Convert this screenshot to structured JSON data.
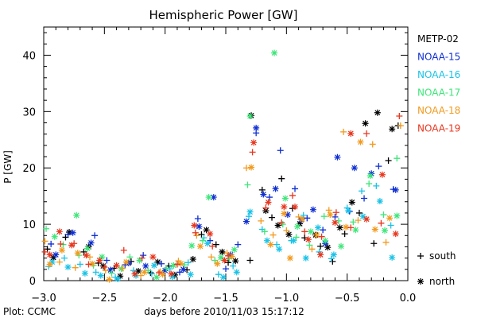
{
  "chart_data": {
    "type": "scatter",
    "title": "Hemispheric Power [GW]",
    "xlabel": "days before 2010/11/03 15:17:12",
    "ylabel": "P [GW]",
    "xlim": [
      -3.0,
      0.0
    ],
    "ylim": [
      0,
      45
    ],
    "xticks": [
      -3.0,
      -2.5,
      -2.0,
      -1.5,
      -1.0,
      -0.5,
      0.0
    ],
    "xtick_labels": [
      "−3.0",
      "−2.5",
      "−2.0",
      "−1.5",
      "−1.0",
      "−0.5",
      "0.0"
    ],
    "yticks": [
      0,
      10,
      20,
      30,
      40
    ],
    "yminor_step": 2,
    "xminor_step": 0.1,
    "grid": false,
    "legend_position": "right",
    "series": [
      {
        "name": "METP-02",
        "color": "#000000",
        "south": [
          [
            -2.97,
            5.6
          ],
          [
            -2.82,
            7.7
          ],
          [
            -2.67,
            5.1
          ],
          [
            -2.55,
            3.1
          ],
          [
            -2.42,
            2.2
          ],
          [
            -2.28,
            3.4
          ],
          [
            -2.12,
            1.4
          ],
          [
            -1.97,
            2.6
          ],
          [
            -1.82,
            1.9
          ],
          [
            -1.7,
            8.2
          ],
          [
            -1.58,
            6.4
          ],
          [
            -1.48,
            3.2
          ],
          [
            -1.3,
            3.6
          ],
          [
            -1.2,
            16.1
          ],
          [
            -1.12,
            11.2
          ],
          [
            -1.04,
            18.1
          ],
          [
            -0.95,
            12.8
          ],
          [
            -0.85,
            7.6
          ],
          [
            -0.72,
            6.1
          ],
          [
            -0.62,
            3.4
          ],
          [
            -0.52,
            8.3
          ],
          [
            -0.4,
            12.0
          ],
          [
            -0.28,
            6.6
          ],
          [
            -0.16,
            21.3
          ],
          [
            -0.08,
            27.5
          ]
        ],
        "north": [
          [
            -2.92,
            4.1
          ],
          [
            -2.79,
            8.6
          ],
          [
            -2.63,
            6.0
          ],
          [
            -2.51,
            2.6
          ],
          [
            -2.37,
            0.8
          ],
          [
            -2.22,
            1.7
          ],
          [
            -2.06,
            3.3
          ],
          [
            -1.92,
            1.0
          ],
          [
            -1.77,
            3.8
          ],
          [
            -1.66,
            9.0
          ],
          [
            -1.53,
            5.1
          ],
          [
            -1.42,
            3.5
          ],
          [
            -1.29,
            29.3
          ],
          [
            -1.17,
            12.4
          ],
          [
            -1.07,
            9.8
          ],
          [
            -0.98,
            8.2
          ],
          [
            -0.89,
            10.1
          ],
          [
            -0.76,
            8.1
          ],
          [
            -0.66,
            5.9
          ],
          [
            -0.56,
            9.4
          ],
          [
            -0.46,
            13.9
          ],
          [
            -0.35,
            27.9
          ],
          [
            -0.25,
            29.8
          ],
          [
            -0.13,
            26.9
          ]
        ]
      },
      {
        "name": "NOAA-15",
        "color": "#0f2fd2",
        "south": [
          [
            -2.94,
            6.5
          ],
          [
            -2.8,
            8.2
          ],
          [
            -2.58,
            8.0
          ],
          [
            -2.48,
            3.6
          ],
          [
            -2.33,
            2.8
          ],
          [
            -2.18,
            4.5
          ],
          [
            -2.03,
            3.0
          ],
          [
            -1.88,
            1.5
          ],
          [
            -1.73,
            11.0
          ],
          [
            -1.63,
            7.1
          ],
          [
            -1.5,
            2.1
          ],
          [
            -1.4,
            6.4
          ],
          [
            -1.25,
            26.2
          ],
          [
            -1.14,
            14.8
          ],
          [
            -1.05,
            23.1
          ],
          [
            -0.93,
            16.3
          ],
          [
            -0.83,
            11.1
          ],
          [
            -0.7,
            9.0
          ],
          [
            -0.6,
            11.3
          ],
          [
            -0.48,
            12.3
          ],
          [
            -0.36,
            14.6
          ],
          [
            -0.24,
            20.3
          ],
          [
            -0.12,
            16.2
          ]
        ],
        "north": [
          [
            -2.9,
            4.6
          ],
          [
            -2.76,
            8.5
          ],
          [
            -2.61,
            6.7
          ],
          [
            -2.45,
            1.9
          ],
          [
            -2.3,
            3.1
          ],
          [
            -2.16,
            2.6
          ],
          [
            -2.0,
            1.8
          ],
          [
            -1.85,
            2.0
          ],
          [
            -1.72,
            9.6
          ],
          [
            -1.6,
            14.8
          ],
          [
            -1.46,
            4.6
          ],
          [
            -1.33,
            10.5
          ],
          [
            -1.25,
            27.1
          ],
          [
            -1.19,
            15.3
          ],
          [
            -1.09,
            16.3
          ],
          [
            -0.99,
            11.7
          ],
          [
            -0.88,
            10.8
          ],
          [
            -0.78,
            12.6
          ],
          [
            -0.68,
            6.6
          ],
          [
            -0.58,
            21.9
          ],
          [
            -0.44,
            20.0
          ],
          [
            -0.3,
            19.0
          ],
          [
            -0.1,
            16.1
          ]
        ]
      },
      {
        "name": "NOAA-16",
        "color": "#19c2e6",
        "south": [
          [
            -2.96,
            2.5
          ],
          [
            -2.83,
            4.0
          ],
          [
            -2.7,
            2.9
          ],
          [
            -2.57,
            1.5
          ],
          [
            -2.41,
            0.6
          ],
          [
            -2.26,
            1.8
          ],
          [
            -2.11,
            1.2
          ],
          [
            -1.96,
            2.1
          ],
          [
            -1.81,
            3.2
          ],
          [
            -1.68,
            7.6
          ],
          [
            -1.56,
            1.1
          ],
          [
            -1.44,
            2.6
          ],
          [
            -1.31,
            11.4
          ],
          [
            -1.2,
            9.1
          ],
          [
            -1.08,
            6.4
          ],
          [
            -0.96,
            7.1
          ],
          [
            -0.86,
            11.6
          ],
          [
            -0.73,
            5.1
          ],
          [
            -0.63,
            3.9
          ],
          [
            -0.5,
            12.9
          ],
          [
            -0.38,
            15.9
          ],
          [
            -0.26,
            16.8
          ],
          [
            -0.14,
            9.8
          ]
        ],
        "north": [
          [
            -2.93,
            3.3
          ],
          [
            -2.8,
            2.4
          ],
          [
            -2.66,
            1.3
          ],
          [
            -2.53,
            0.9
          ],
          [
            -2.39,
            0.3
          ],
          [
            -2.24,
            0.9
          ],
          [
            -2.09,
            2.7
          ],
          [
            -1.94,
            0.7
          ],
          [
            -1.79,
            1.1
          ],
          [
            -1.65,
            6.6
          ],
          [
            -1.52,
            0.6
          ],
          [
            -1.41,
            1.5
          ],
          [
            -1.3,
            12.2
          ],
          [
            -1.16,
            7.1
          ],
          [
            -1.06,
            5.6
          ],
          [
            -0.94,
            7.1
          ],
          [
            -0.84,
            4.0
          ],
          [
            -0.74,
            9.4
          ],
          [
            -0.61,
            4.6
          ],
          [
            -0.49,
            12.4
          ],
          [
            -0.37,
            11.4
          ],
          [
            -0.23,
            14.1
          ],
          [
            -0.13,
            4.1
          ]
        ]
      },
      {
        "name": "NOAA-17",
        "color": "#3fe67a",
        "south": [
          [
            -2.98,
            9.2
          ],
          [
            -2.84,
            6.4
          ],
          [
            -2.71,
            4.5
          ],
          [
            -2.59,
            2.7
          ],
          [
            -2.44,
            1.3
          ],
          [
            -2.29,
            4.2
          ],
          [
            -2.14,
            1.8
          ],
          [
            -1.99,
            2.2
          ],
          [
            -1.84,
            2.8
          ],
          [
            -1.69,
            7.1
          ],
          [
            -1.59,
            3.6
          ],
          [
            -1.47,
            3.9
          ],
          [
            -1.32,
            17.0
          ],
          [
            -1.18,
            8.7
          ],
          [
            -1.03,
            10.0
          ],
          [
            -0.92,
            7.7
          ],
          [
            -0.81,
            6.3
          ],
          [
            -0.69,
            11.4
          ],
          [
            -0.57,
            10.6
          ],
          [
            -0.45,
            10.4
          ],
          [
            -0.32,
            17.2
          ],
          [
            -0.2,
            11.7
          ],
          [
            -0.09,
            21.7
          ]
        ],
        "north": [
          [
            -2.91,
            7.8
          ],
          [
            -2.73,
            11.6
          ],
          [
            -2.64,
            5.7
          ],
          [
            -2.52,
            4.2
          ],
          [
            -2.36,
            2.1
          ],
          [
            -2.21,
            3.6
          ],
          [
            -2.07,
            0.6
          ],
          [
            -1.93,
            2.7
          ],
          [
            -1.78,
            6.2
          ],
          [
            -1.64,
            14.8
          ],
          [
            -1.54,
            4.1
          ],
          [
            -1.43,
            5.5
          ],
          [
            -1.3,
            29.2
          ],
          [
            -1.1,
            40.4
          ],
          [
            -1.01,
            14.6
          ],
          [
            -0.91,
            9.6
          ],
          [
            -0.8,
            8.7
          ],
          [
            -0.68,
            7.1
          ],
          [
            -0.55,
            6.1
          ],
          [
            -0.43,
            9.0
          ],
          [
            -0.31,
            18.6
          ],
          [
            -0.19,
            8.9
          ],
          [
            -0.09,
            11.5
          ]
        ]
      },
      {
        "name": "NOAA-18",
        "color": "#f29a1e",
        "south": [
          [
            -2.99,
            7.0
          ],
          [
            -2.87,
            3.3
          ],
          [
            -2.74,
            2.3
          ],
          [
            -2.62,
            4.2
          ],
          [
            -2.49,
            1.8
          ],
          [
            -2.35,
            2.2
          ],
          [
            -2.2,
            0.9
          ],
          [
            -2.04,
            1.6
          ],
          [
            -1.89,
            3.5
          ],
          [
            -1.74,
            8.0
          ],
          [
            -1.62,
            4.2
          ],
          [
            -1.49,
            4.9
          ],
          [
            -1.33,
            20.0
          ],
          [
            -1.21,
            10.6
          ],
          [
            -1.11,
            8.1
          ],
          [
            -1.0,
            8.9
          ],
          [
            -0.9,
            11.3
          ],
          [
            -0.79,
            5.6
          ],
          [
            -0.65,
            12.5
          ],
          [
            -0.53,
            26.4
          ],
          [
            -0.41,
            10.7
          ],
          [
            -0.29,
            24.2
          ],
          [
            -0.18,
            6.8
          ],
          [
            -0.06,
            27.5
          ]
        ],
        "north": [
          [
            -2.95,
            2.9
          ],
          [
            -2.85,
            5.4
          ],
          [
            -2.72,
            4.9
          ],
          [
            -2.6,
            3.0
          ],
          [
            -2.46,
            0.2
          ],
          [
            -2.32,
            3.3
          ],
          [
            -2.17,
            1.5
          ],
          [
            -2.02,
            1.1
          ],
          [
            -1.87,
            3.0
          ],
          [
            -1.71,
            6.1
          ],
          [
            -1.57,
            3.0
          ],
          [
            -1.45,
            4.3
          ],
          [
            -1.29,
            20.1
          ],
          [
            -1.13,
            6.4
          ],
          [
            -1.02,
            11.9
          ],
          [
            -0.97,
            4.0
          ],
          [
            -0.87,
            10.9
          ],
          [
            -0.75,
            8.1
          ],
          [
            -0.64,
            11.7
          ],
          [
            -0.51,
            9.5
          ],
          [
            -0.39,
            24.6
          ],
          [
            -0.27,
            9.1
          ],
          [
            -0.15,
            11.1
          ]
        ]
      },
      {
        "name": "NOAA-19",
        "color": "#e8361e",
        "south": [
          [
            -2.99,
            5.1
          ],
          [
            -2.86,
            6.5
          ],
          [
            -2.75,
            6.6
          ],
          [
            -2.63,
            2.9
          ],
          [
            -2.5,
            2.4
          ],
          [
            -2.34,
            5.4
          ],
          [
            -2.19,
            4.0
          ],
          [
            -2.05,
            1.4
          ],
          [
            -1.9,
            2.9
          ],
          [
            -1.75,
            8.5
          ],
          [
            -1.61,
            6.1
          ],
          [
            -1.48,
            4.4
          ],
          [
            -1.28,
            22.8
          ],
          [
            -1.17,
            12.9
          ],
          [
            -1.04,
            10.3
          ],
          [
            -0.95,
            15.1
          ],
          [
            -0.85,
            8.7
          ],
          [
            -0.71,
            7.8
          ],
          [
            -0.59,
            12.1
          ],
          [
            -0.47,
            9.4
          ],
          [
            -0.34,
            26.1
          ],
          [
            -0.22,
            10.2
          ],
          [
            -0.07,
            29.2
          ]
        ],
        "north": [
          [
            -2.95,
            4.6
          ],
          [
            -2.87,
            8.7
          ],
          [
            -2.77,
            6.3
          ],
          [
            -2.65,
            4.5
          ],
          [
            -2.54,
            3.6
          ],
          [
            -2.4,
            2.7
          ],
          [
            -2.25,
            1.2
          ],
          [
            -2.1,
            4.2
          ],
          [
            -1.95,
            1.2
          ],
          [
            -1.76,
            9.8
          ],
          [
            -1.63,
            8.3
          ],
          [
            -1.51,
            3.6
          ],
          [
            -1.27,
            24.5
          ],
          [
            -1.15,
            13.9
          ],
          [
            -1.02,
            13.1
          ],
          [
            -0.93,
            13.1
          ],
          [
            -0.82,
            7.3
          ],
          [
            -0.72,
            4.6
          ],
          [
            -0.6,
            10.3
          ],
          [
            -0.47,
            26.1
          ],
          [
            -0.34,
            10.9
          ],
          [
            -0.21,
            18.8
          ],
          [
            -0.1,
            8.3
          ]
        ]
      }
    ],
    "marker_legend": [
      {
        "symbol": "+",
        "label": "south"
      },
      {
        "symbol": "∗",
        "label": "north"
      }
    ],
    "credit": "Plot: CCMC"
  }
}
